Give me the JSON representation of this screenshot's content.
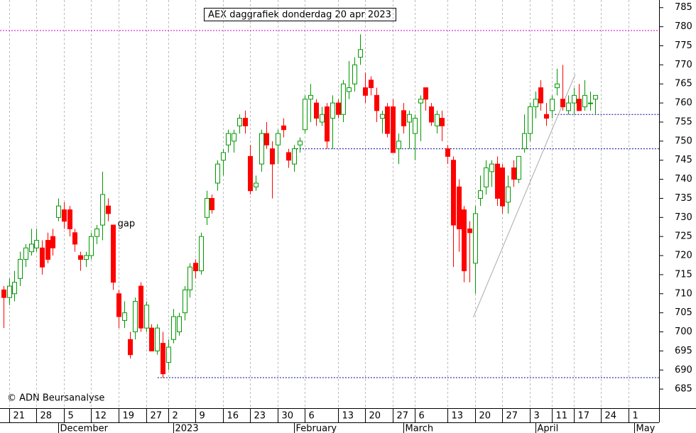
{
  "chart_data": {
    "type": "candlestick",
    "title": "AEX daggrafiek donderdag 20 apr 2023",
    "credit": "© ADN Beursanalyse",
    "up_color": "#009900",
    "down_color": "#ff0000",
    "open": [
      711,
      709,
      710,
      714,
      719,
      721,
      722,
      722,
      724,
      725,
      730,
      732,
      732,
      726,
      720,
      719,
      720,
      725,
      728,
      733,
      728,
      710,
      703,
      698,
      700,
      712,
      701,
      701,
      695,
      697,
      692,
      698,
      700,
      705,
      711,
      718,
      716,
      730,
      735,
      739,
      745,
      749,
      750,
      754,
      756,
      746,
      738,
      744,
      752,
      748,
      749,
      754,
      747,
      744,
      749,
      753,
      761,
      760,
      755,
      759,
      756,
      760,
      757,
      763,
      765,
      772,
      764,
      766,
      762,
      756,
      759,
      759,
      748,
      758,
      755,
      752,
      760,
      764,
      759,
      754,
      756,
      748,
      745,
      738,
      732,
      727,
      718,
      735,
      738,
      742,
      744,
      743,
      734,
      743,
      740,
      748,
      752,
      759,
      764,
      757,
      758,
      764,
      761,
      758,
      760,
      761,
      759,
      760,
      761
    ],
    "high": [
      712,
      714,
      716,
      721,
      723,
      727,
      727,
      724,
      726,
      727,
      735,
      734,
      733,
      727,
      721,
      721,
      726,
      728,
      742,
      735,
      728,
      711,
      708,
      700,
      709,
      713,
      708,
      702,
      702,
      700,
      698,
      706,
      705,
      712,
      718,
      719,
      726,
      737,
      736,
      745,
      748,
      753,
      753,
      757,
      758,
      749,
      741,
      753,
      755,
      750,
      753,
      756,
      748,
      749,
      751,
      762,
      765,
      761,
      759,
      760,
      762,
      761,
      766,
      771,
      772,
      778,
      768,
      767,
      764,
      758,
      760,
      761,
      752,
      760,
      758,
      757,
      762,
      764,
      760,
      758,
      758,
      749,
      746,
      740,
      733,
      729,
      733,
      741,
      745,
      745,
      746,
      744,
      741,
      745,
      746,
      757,
      760,
      763,
      766,
      760,
      762,
      769,
      770,
      762,
      764,
      765,
      766,
      763,
      762
    ],
    "low": [
      701,
      707,
      708,
      712,
      717,
      720,
      721,
      715,
      718,
      720,
      729,
      727,
      725,
      721,
      716,
      717,
      719,
      723,
      724,
      729,
      711,
      701,
      701,
      693,
      698,
      700,
      700,
      695,
      694,
      688,
      690,
      697,
      699,
      703,
      709,
      714,
      715,
      728,
      731,
      737,
      741,
      747,
      747,
      752,
      752,
      736,
      737,
      742,
      748,
      735,
      744,
      751,
      743,
      742,
      747,
      752,
      755,
      754,
      754,
      748,
      748,
      756,
      755,
      761,
      763,
      770,
      760,
      762,
      755,
      752,
      751,
      747,
      744,
      752,
      748,
      745,
      750,
      758,
      754,
      752,
      750,
      744,
      717,
      721,
      713,
      713,
      710,
      733,
      736,
      738,
      733,
      731,
      731,
      738,
      739,
      747,
      750,
      756,
      758,
      754,
      756,
      762,
      758,
      757,
      757,
      758,
      758,
      758,
      757
    ],
    "close": [
      709,
      712,
      713,
      719,
      722,
      723,
      724,
      717,
      719,
      722,
      733,
      729,
      727,
      723,
      719,
      720,
      725,
      727,
      736,
      731,
      713,
      704,
      705,
      694,
      708,
      701,
      707,
      695,
      701,
      689,
      696,
      704,
      704,
      711,
      717,
      716,
      725,
      735,
      732,
      744,
      747,
      752,
      752,
      756,
      754,
      737,
      739,
      752,
      749,
      744,
      752,
      753,
      745,
      748,
      750,
      761,
      762,
      756,
      757,
      750,
      760,
      757,
      765,
      764,
      770,
      774,
      762,
      764,
      758,
      757,
      752,
      747,
      750,
      754,
      757,
      756,
      761,
      761,
      755,
      757,
      754,
      746,
      728,
      727,
      716,
      726,
      731,
      737,
      743,
      744,
      735,
      733,
      738,
      740,
      746,
      752,
      759,
      761,
      760,
      756,
      761,
      765,
      759,
      760,
      762,
      758,
      762,
      760,
      762
    ],
    "xlim": [
      -0.65,
      119.6
    ],
    "xticks": [
      {
        "value": 1,
        "label": "21"
      },
      {
        "value": 6,
        "label": "28"
      },
      {
        "value": 11,
        "label": "5"
      },
      {
        "value": 16,
        "label": "12"
      },
      {
        "value": 21,
        "label": "19"
      },
      {
        "value": 26,
        "label": "27"
      },
      {
        "value": 30,
        "label": "2"
      },
      {
        "value": 35,
        "label": "9"
      },
      {
        "value": 40,
        "label": "16"
      },
      {
        "value": 45,
        "label": "23"
      },
      {
        "value": 50,
        "label": "30"
      },
      {
        "value": 55,
        "label": "6"
      },
      {
        "value": 61,
        "label": "13"
      },
      {
        "value": 66,
        "label": "20"
      },
      {
        "value": 71,
        "label": "27"
      },
      {
        "value": 75,
        "label": "6"
      },
      {
        "value": 81,
        "label": "13"
      },
      {
        "value": 86,
        "label": "20"
      },
      {
        "value": 91,
        "label": "27"
      },
      {
        "value": 96,
        "label": "3"
      },
      {
        "value": 100,
        "label": "11"
      },
      {
        "value": 104,
        "label": "17"
      },
      {
        "value": 109,
        "label": "24"
      },
      {
        "value": 114,
        "label": "1"
      }
    ],
    "month_ticks": [
      {
        "value": 10,
        "label": "December"
      },
      {
        "value": 31,
        "label": "2023"
      },
      {
        "value": 53,
        "label": "February"
      },
      {
        "value": 73,
        "label": "March"
      },
      {
        "value": 97,
        "label": "April"
      },
      {
        "value": 115,
        "label": "May"
      }
    ],
    "ylim": [
      680,
      787
    ],
    "yticks": [
      685,
      690,
      695,
      700,
      705,
      710,
      715,
      720,
      725,
      730,
      735,
      740,
      745,
      750,
      755,
      760,
      765,
      770,
      775,
      780,
      785
    ],
    "grid": true,
    "levels": [
      {
        "value": 779,
        "color": "#cc00cc"
      },
      {
        "value": 757,
        "start": 100.6,
        "color": "#000099"
      },
      {
        "value": 748,
        "start": 53.5,
        "color": "#000099"
      },
      {
        "value": 688,
        "start": 28.1,
        "color": "#000099"
      }
    ],
    "trendline": {
      "x": [
        85.7,
        104.3
      ],
      "y": [
        703.8,
        767.5
      ],
      "color": "#aaaaaa"
    },
    "annotations": [
      {
        "text": "gap",
        "x": 22.4,
        "y": 728.3
      }
    ]
  }
}
